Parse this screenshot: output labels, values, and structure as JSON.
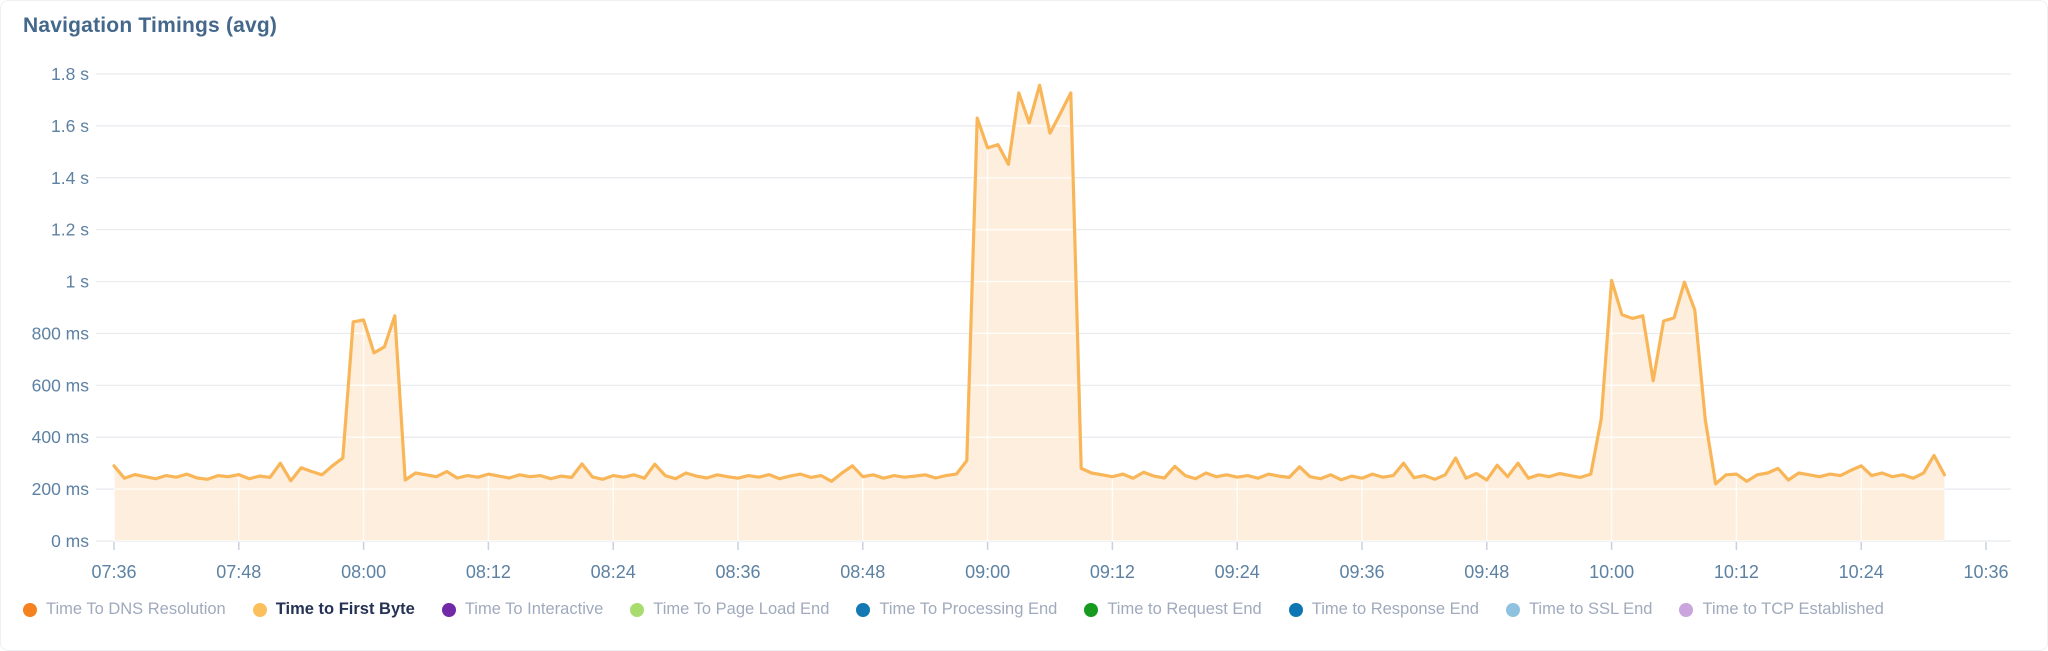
{
  "title": "Navigation Timings (avg)",
  "colors": {
    "title": "#44688c",
    "axis_label": "#5d81a3",
    "grid": "#e8eaee",
    "grid_on_fill": "#ffffff",
    "tick": "#c9d2dc",
    "line": "#f9b658",
    "fill": "#fdeedd",
    "legend_text": "#a0aabd",
    "legend_text_active": "#243253"
  },
  "chart_data": {
    "type": "area",
    "title": "Navigation Timings (avg)",
    "unit": "ms",
    "ylim_ms": [
      0,
      1800
    ],
    "y_tick_step_ms": 200,
    "y_tick_labels": [
      "0 ms",
      "200 ms",
      "400 ms",
      "600 ms",
      "800 ms",
      "1 s",
      "1.2 s",
      "1.4 s",
      "1.6 s",
      "1.8 s"
    ],
    "x_range_minutes": 180,
    "x_tick_labels": [
      "07:36",
      "07:48",
      "08:00",
      "08:12",
      "08:24",
      "08:36",
      "08:48",
      "09:00",
      "09:12",
      "09:24",
      "09:36",
      "09:48",
      "10:00",
      "10:12",
      "10:24",
      "10:36"
    ],
    "grid": true,
    "legend_position": "bottom",
    "series": [
      {
        "name": "Time to First Byte",
        "color": "#f9b658",
        "start_time": "07:36",
        "end_time": "10:32",
        "step_minutes": 1,
        "values_ms": [
          290,
          242,
          256,
          248,
          240,
          252,
          246,
          258,
          243,
          238,
          252,
          248,
          256,
          240,
          250,
          245,
          300,
          232,
          282,
          268,
          255,
          290,
          320,
          845,
          852,
          725,
          748,
          868,
          235,
          262,
          255,
          248,
          268,
          243,
          252,
          246,
          258,
          250,
          243,
          255,
          248,
          252,
          240,
          250,
          245,
          297,
          247,
          238,
          252,
          246,
          255,
          242,
          296,
          252,
          240,
          262,
          250,
          243,
          255,
          248,
          242,
          252,
          246,
          256,
          240,
          250,
          258,
          245,
          252,
          230,
          262,
          290,
          248,
          255,
          242,
          252,
          246,
          250,
          255,
          243,
          252,
          258,
          310,
          1630,
          1515,
          1528,
          1452,
          1727,
          1612,
          1757,
          1572,
          1648,
          1727,
          280,
          262,
          255,
          248,
          258,
          242,
          265,
          250,
          243,
          288,
          252,
          240,
          262,
          248,
          255,
          246,
          252,
          242,
          258,
          250,
          245,
          286,
          248,
          240,
          255,
          236,
          250,
          242,
          258,
          246,
          252,
          300,
          244,
          252,
          238,
          255,
          320,
          242,
          260,
          235,
          292,
          248,
          300,
          242,
          255,
          248,
          260,
          252,
          245,
          258,
          470,
          1005,
          872,
          858,
          868,
          618,
          848,
          860,
          998,
          890,
          470,
          220,
          255,
          258,
          230,
          255,
          262,
          280,
          235,
          262,
          255,
          248,
          258,
          252,
          272,
          290,
          252,
          262,
          248,
          255,
          242,
          262,
          330,
          255
        ]
      }
    ],
    "legend": [
      {
        "label": "Time To DNS Resolution",
        "color": "#f5821f",
        "active": false
      },
      {
        "label": "Time to First Byte",
        "color": "#fbc05c",
        "active": true
      },
      {
        "label": "Time To Interactive",
        "color": "#7129a8",
        "active": false
      },
      {
        "label": "Time To Page Load End",
        "color": "#a9dc6f",
        "active": false
      },
      {
        "label": "Time To Processing End",
        "color": "#1478b5",
        "active": false
      },
      {
        "label": "Time to Request End",
        "color": "#169a1f",
        "active": false
      },
      {
        "label": "Time to Response End",
        "color": "#0f76b4",
        "active": false
      },
      {
        "label": "Time to SSL End",
        "color": "#8fc2de",
        "active": false
      },
      {
        "label": "Time to TCP Established",
        "color": "#c9a4dd",
        "active": false
      }
    ]
  }
}
